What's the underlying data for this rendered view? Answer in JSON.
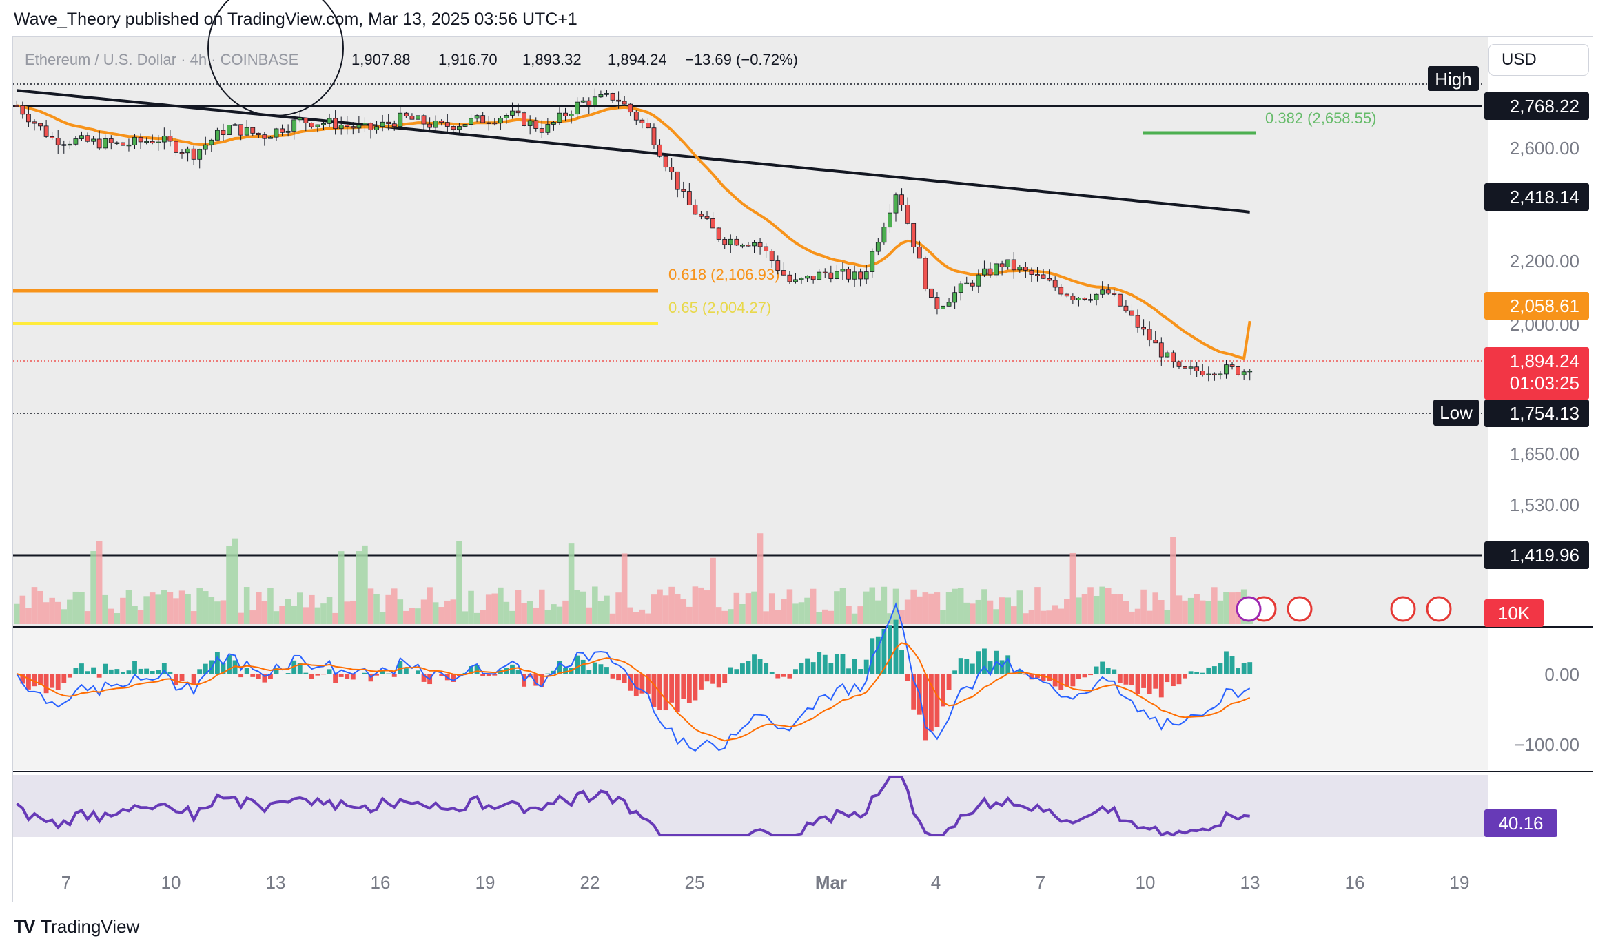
{
  "header": {
    "published": "Wave_Theory published on TradingView.com, Mar 13, 2025 03:56 UTC+1"
  },
  "legend": {
    "symbol": "Ethereum / U.S. Dollar · 4h · COINBASE",
    "open": "1,907.88",
    "high": "1,916.70",
    "low": "1,893.32",
    "close": "1,894.24",
    "change": "−13.69 (−0.72%)"
  },
  "currency": "USD",
  "price_axis": {
    "ticks": [
      "2,600.00",
      "2,200.00",
      "2,000.00",
      "1,650.00",
      "1,530.00"
    ],
    "tags": {
      "high_label": "High",
      "high_value": "2,768.22",
      "ema200_value": "2,418.14",
      "ema50_value": "2,058.61",
      "last_price": "1,894.24",
      "countdown": "01:03:25",
      "low_label": "Low",
      "low_value": "1,754.13",
      "support": "1,419.96",
      "volume": "10K"
    }
  },
  "fib": {
    "f382": "0.382 (2,658.55)",
    "f618": "0.618 (2,106.93)",
    "f65": "0.65 (2,004.27)"
  },
  "macd_axis": {
    "ticks": [
      "0.00",
      "−100.00"
    ]
  },
  "rsi_axis": {
    "value": "40.16"
  },
  "time_axis": [
    "7",
    "10",
    "13",
    "16",
    "19",
    "22",
    "25",
    "Mar",
    "4",
    "7",
    "10",
    "13",
    "16",
    "19"
  ],
  "footer": {
    "brand": "TradingView"
  },
  "colors": {
    "up": "#26a69a",
    "down": "#ef5350",
    "ema50": "#f7931a",
    "ema200": "#131722",
    "fib382": "#4caf50",
    "fib618": "#f7931a",
    "fib65": "#ffeb3b",
    "rsi": "#673ab7",
    "macd": "#2962ff",
    "signal": "#ff6d00"
  },
  "chart_data": {
    "type": "candlestick",
    "instrument": "Ethereum / U.S. Dollar",
    "timeframe": "4h",
    "exchange": "COINBASE",
    "levels": {
      "high": 2768.22,
      "low": 1754.13,
      "support": 1419.96,
      "fib_0_382": 2658.55,
      "fib_0_618": 2106.93,
      "fib_0_65": 2004.27,
      "ema50_last": 2058.61,
      "ema200_last": 2418.14
    },
    "last_close": 1894.24,
    "rsi_last": 40.16,
    "close_path": [
      [
        "Feb 6",
        2770
      ],
      [
        "Feb 7",
        2660
      ],
      [
        "Feb 8",
        2650
      ],
      [
        "Feb 9",
        2640
      ],
      [
        "Feb 10",
        2660
      ],
      [
        "Feb 11",
        2610
      ],
      [
        "Feb 12",
        2700
      ],
      [
        "Feb 13",
        2670
      ],
      [
        "Feb 14",
        2720
      ],
      [
        "Feb 15",
        2710
      ],
      [
        "Feb 16",
        2690
      ],
      [
        "Feb 17",
        2730
      ],
      [
        "Feb 18",
        2700
      ],
      [
        "Feb 19",
        2720
      ],
      [
        "Feb 20",
        2740
      ],
      [
        "Feb 21",
        2690
      ],
      [
        "Feb 22",
        2780
      ],
      [
        "Feb 23",
        2800
      ],
      [
        "Feb 24",
        2680
      ],
      [
        "Feb 25",
        2450
      ],
      [
        "Feb 26",
        2330
      ],
      [
        "Feb 27",
        2320
      ],
      [
        "Feb 28",
        2180
      ],
      [
        "Mar 1",
        2220
      ],
      [
        "Mar 2",
        2200
      ],
      [
        "Mar 3",
        2500
      ],
      [
        "Mar 4",
        2100
      ],
      [
        "Mar 5",
        2180
      ],
      [
        "Mar 6",
        2250
      ],
      [
        "Mar 7",
        2200
      ],
      [
        "Mar 8",
        2140
      ],
      [
        "Mar 9",
        2150
      ],
      [
        "Mar 10",
        2020
      ],
      [
        "Mar 11",
        1890
      ],
      [
        "Mar 12",
        1900
      ],
      [
        "Mar 13",
        1894.24
      ]
    ]
  }
}
